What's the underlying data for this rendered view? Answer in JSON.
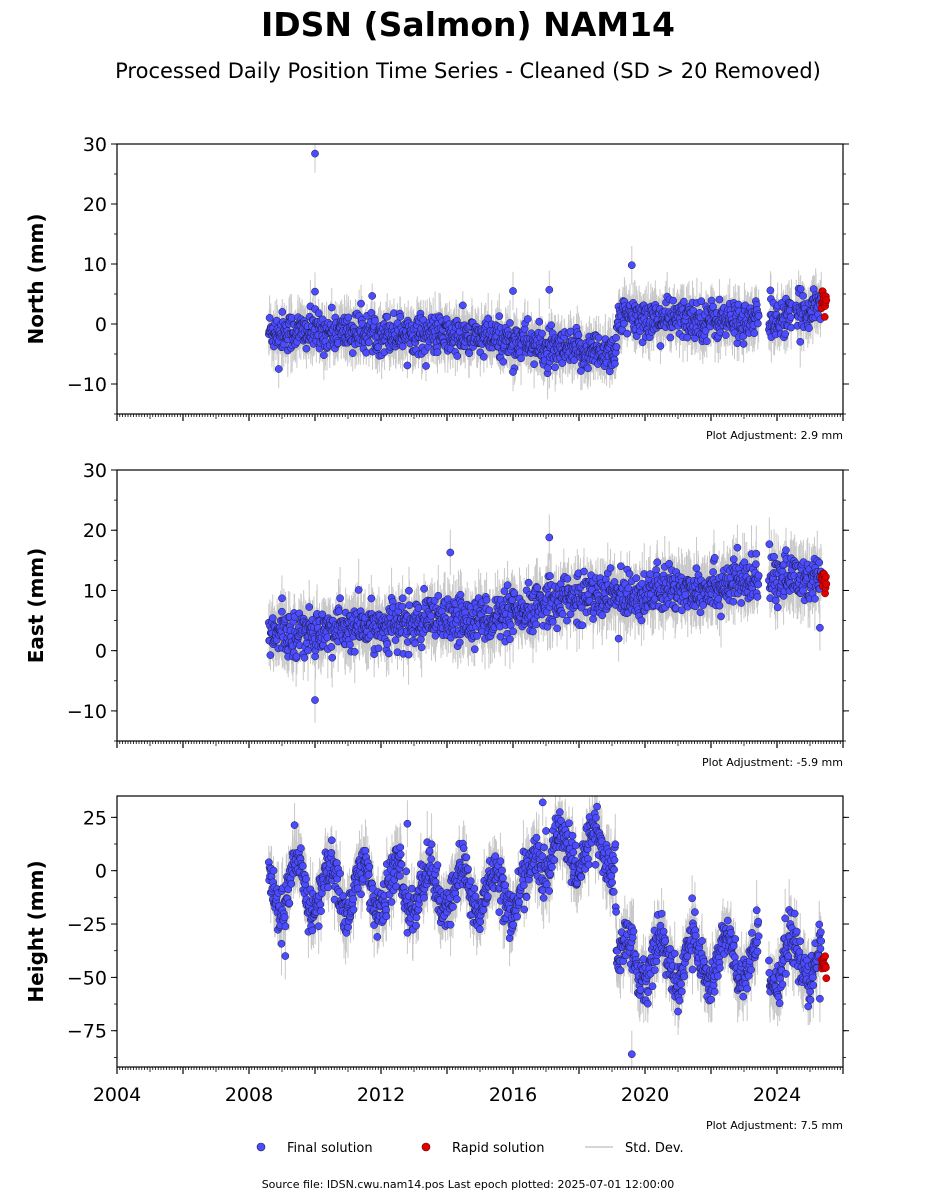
{
  "header": {
    "title": "IDSN (Salmon) NAM14",
    "subtitle": "Processed Daily Position Time Series - Cleaned (SD > 20 Removed)"
  },
  "legend": {
    "final_label": "Final solution",
    "rapid_label": "Rapid solution",
    "std_label": "Std. Dev."
  },
  "footer": {
    "source": "Source file: IDSN.cwu.nam14.pos  Last epoch plotted: 2025-07-01 12:00:00"
  },
  "colors": {
    "final": "#4b4bff",
    "rapid": "#e00000",
    "std": "#c8c8c8",
    "edge": "#1a1a3a"
  },
  "chart_data": [
    {
      "type": "scatter",
      "ylabel": "North (mm)",
      "ylim": [
        -15,
        30
      ],
      "xlim": [
        2004,
        2026
      ],
      "yticks": [
        -10,
        0,
        10,
        20,
        30
      ],
      "ytick_labels": [
        "−10",
        "0",
        "10",
        "20",
        "30"
      ],
      "plot_adjustment": "Plot Adjustment: 2.9 mm",
      "trend": [
        [
          2008.6,
          -1.2
        ],
        [
          2013,
          -1.5
        ],
        [
          2016.5,
          -3.0
        ],
        [
          2017,
          -4.5
        ],
        [
          2019.1,
          -4.5
        ],
        [
          2019.2,
          1.0
        ],
        [
          2023.5,
          0.5
        ],
        [
          2023.6,
          0.5
        ],
        [
          2024.4,
          1.0
        ],
        [
          2025.5,
          4.0
        ]
      ],
      "gaps": [
        [
          2023.45,
          2023.75
        ],
        [
          2024.45,
          2024.55
        ]
      ],
      "noise": 1.6,
      "outliers": [
        [
          2010.0,
          28.4
        ],
        [
          2017.1,
          5.7
        ],
        [
          2019.6,
          9.8
        ],
        [
          2016.0,
          5.5
        ],
        [
          2008.9,
          -7.5
        ],
        [
          2010.0,
          5.4
        ],
        [
          2016.0,
          -8.0
        ],
        [
          2023.8,
          5.6
        ]
      ],
      "rapid": {
        "x_start": 2025.35,
        "x_end": 2025.5,
        "center": 3.8,
        "spread": 1.0
      }
    },
    {
      "type": "scatter",
      "ylabel": "East (mm)",
      "ylim": [
        -15,
        30
      ],
      "xlim": [
        2004,
        2026
      ],
      "yticks": [
        -10,
        0,
        10,
        20,
        30
      ],
      "ytick_labels": [
        "−10",
        "0",
        "10",
        "20",
        "30"
      ],
      "plot_adjustment": "Plot Adjustment: -5.9 mm",
      "trend": [
        [
          2008.6,
          2.5
        ],
        [
          2013,
          4.5
        ],
        [
          2016.5,
          6.0
        ],
        [
          2017,
          8.5
        ],
        [
          2020,
          9.5
        ],
        [
          2023.5,
          11.5
        ],
        [
          2024,
          12.5
        ],
        [
          2025.5,
          11.5
        ]
      ],
      "gaps": [
        [
          2023.45,
          2023.75
        ]
      ],
      "noise": 1.9,
      "outliers": [
        [
          2010.0,
          -8.2
        ],
        [
          2017.1,
          18.8
        ],
        [
          2014.1,
          16.3
        ],
        [
          2022.8,
          17.1
        ],
        [
          2025.3,
          3.8
        ],
        [
          2019.2,
          2.0
        ],
        [
          2009.0,
          8.7
        ]
      ],
      "rapid": {
        "x_start": 2025.35,
        "x_end": 2025.5,
        "center": 11.8,
        "spread": 1.2
      }
    },
    {
      "type": "scatter",
      "ylabel": "Height (mm)",
      "ylim": [
        -92,
        35
      ],
      "xlim": [
        2004,
        2026
      ],
      "yticks": [
        -75,
        -50,
        -25,
        0,
        25
      ],
      "ytick_labels": [
        "−75",
        "−50",
        "−25",
        "0",
        "25"
      ],
      "xticks": [
        2004,
        2008,
        2012,
        2016,
        2020,
        2024
      ],
      "xtick_labels": [
        "2004",
        "2008",
        "2012",
        "2016",
        "2020",
        "2024"
      ],
      "plot_adjustment": "Plot Adjustment: 7.5 mm",
      "trend": [
        [
          2008.6,
          -8
        ],
        [
          2016.5,
          -10
        ],
        [
          2016.7,
          8
        ],
        [
          2019.1,
          10
        ],
        [
          2019.15,
          -42
        ],
        [
          2025.5,
          -42
        ]
      ],
      "gaps": [
        [
          2023.45,
          2023.75
        ]
      ],
      "noise": 5.5,
      "seasonal": 11,
      "outliers": [
        [
          2019.6,
          -86
        ],
        [
          2009.1,
          -40
        ],
        [
          2012.8,
          22
        ],
        [
          2016.9,
          32
        ],
        [
          2021.0,
          -66
        ],
        [
          2025.3,
          -60
        ]
      ],
      "rapid": {
        "x_start": 2025.35,
        "x_end": 2025.5,
        "center": -42,
        "spread": 4
      }
    }
  ]
}
